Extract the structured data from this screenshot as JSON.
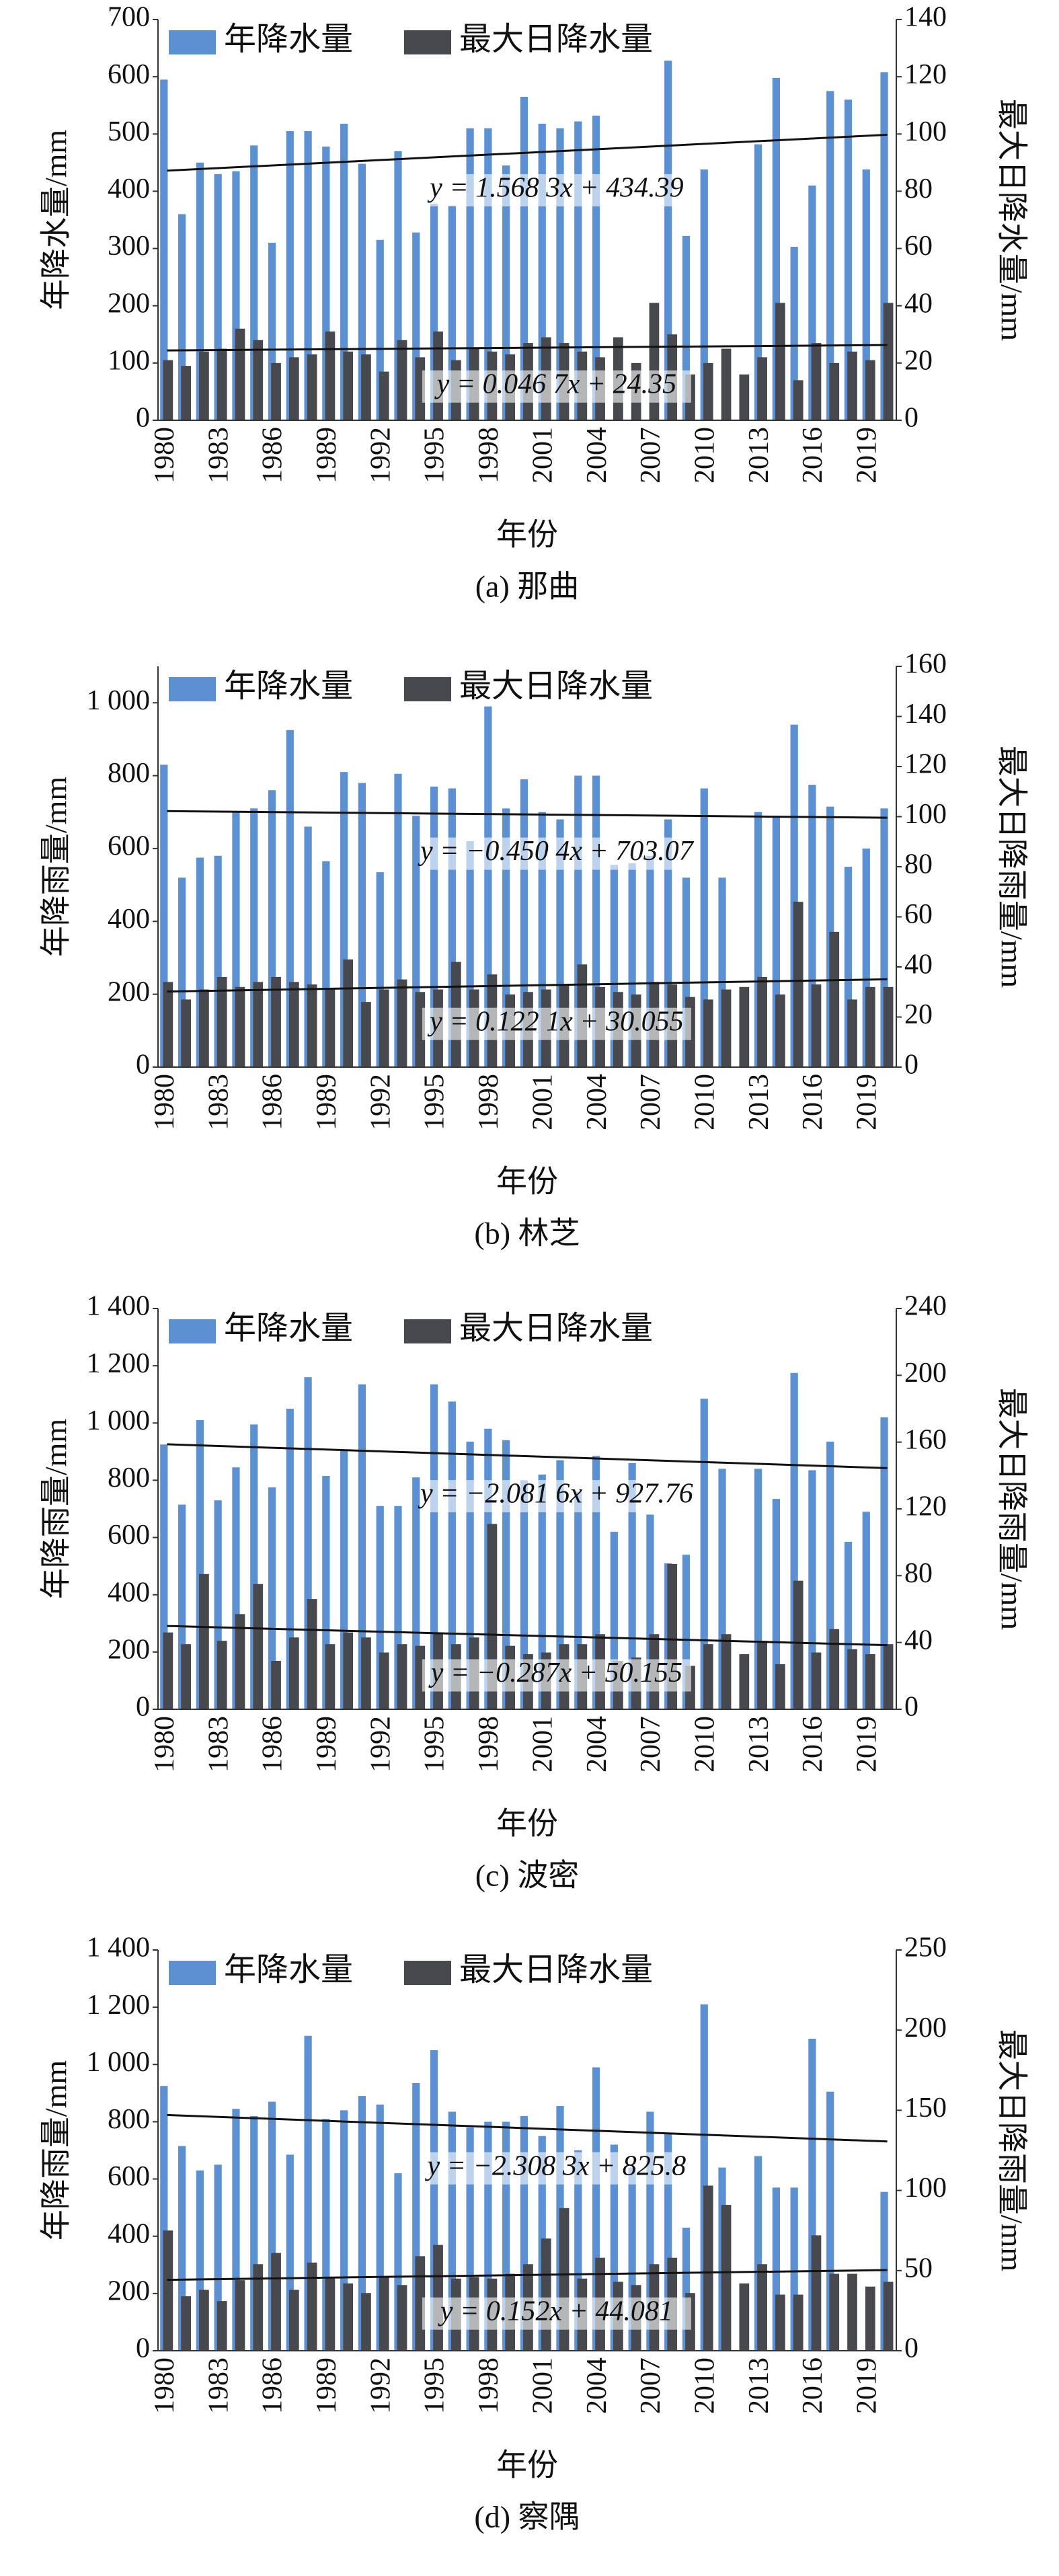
{
  "chart_data": [
    {
      "type": "bar",
      "caption": "(a) 那曲",
      "xlabel": "年份",
      "ylabel": "年降水量/mm",
      "y2label": "最大日降水量/mm",
      "categories": [
        "1980",
        null,
        null,
        "1983",
        null,
        null,
        "1986",
        null,
        null,
        "1989",
        null,
        null,
        "1992",
        null,
        null,
        "1995",
        null,
        null,
        "1998",
        null,
        null,
        "2001",
        null,
        null,
        "2004",
        null,
        null,
        "2007",
        null,
        null,
        "2010",
        null,
        null,
        "2013",
        null,
        null,
        "2016",
        null,
        null,
        "2019",
        null
      ],
      "series": [
        {
          "name": "年降水量",
          "color": "#5b90d2",
          "values": [
            595,
            360,
            450,
            430,
            435,
            480,
            310,
            505,
            505,
            478,
            518,
            448,
            315,
            470,
            328,
            378,
            375,
            510,
            510,
            445,
            565,
            518,
            510,
            522,
            532,
            null,
            null,
            null,
            628,
            322,
            438,
            null,
            null,
            482,
            598,
            303,
            410,
            575,
            560,
            438,
            608
          ]
        },
        {
          "name": "最大日降水量",
          "color": "#48494f",
          "axis": "y2",
          "values": [
            21,
            19,
            24,
            25,
            32,
            28,
            20,
            22,
            23,
            31,
            24,
            23,
            17,
            28,
            22,
            31,
            21,
            25,
            24,
            23,
            27,
            29,
            27,
            24,
            22,
            29,
            20,
            41,
            30,
            16,
            20,
            25,
            16,
            22,
            41,
            14,
            27,
            20,
            24,
            21,
            41
          ]
        }
      ],
      "trendlines": [
        {
          "slope": 1.5683,
          "intercept": 434.39,
          "label": "y = 1.568 3x + 434.39"
        },
        {
          "slope": 0.0467,
          "intercept": 24.35,
          "label": "y = 0.046 7x + 24.35",
          "axis": "y2"
        }
      ],
      "ylim": [
        0,
        700
      ],
      "yticks": [
        0,
        100,
        200,
        300,
        400,
        500,
        600,
        700
      ],
      "y2lim": [
        0,
        140
      ],
      "y2ticks": [
        0,
        20,
        40,
        60,
        80,
        100,
        120,
        140
      ]
    },
    {
      "type": "bar",
      "caption": "(b) 林芝",
      "xlabel": "年份",
      "ylabel": "年降雨量/mm",
      "y2label": "最大日降雨量/mm",
      "categories": [
        "1980",
        null,
        null,
        "1983",
        null,
        null,
        "1986",
        null,
        null,
        "1989",
        null,
        null,
        "1992",
        null,
        null,
        "1995",
        null,
        null,
        "1998",
        null,
        null,
        "2001",
        null,
        null,
        "2004",
        null,
        null,
        "2007",
        null,
        null,
        "2010",
        null,
        null,
        "2013",
        null,
        null,
        "2016",
        null,
        null,
        "2019",
        null
      ],
      "series": [
        {
          "name": "年降水量",
          "color": "#5b90d2",
          "values": [
            830,
            520,
            575,
            580,
            700,
            710,
            760,
            925,
            660,
            565,
            810,
            780,
            535,
            805,
            690,
            770,
            765,
            620,
            990,
            710,
            790,
            700,
            680,
            800,
            800,
            555,
            560,
            580,
            680,
            520,
            765,
            520,
            null,
            700,
            690,
            940,
            775,
            715,
            550,
            600,
            710
          ]
        },
        {
          "name": "最大日降水量",
          "color": "#48494f",
          "axis": "y2",
          "values": [
            34,
            27,
            31,
            36,
            32,
            34,
            36,
            34,
            33,
            31,
            43,
            26,
            31,
            35,
            30,
            31,
            42,
            31,
            37,
            29,
            30,
            31,
            33,
            41,
            32,
            30,
            29,
            34,
            33,
            28,
            27,
            31,
            32,
            36,
            29,
            66,
            33,
            54,
            27,
            32,
            32
          ]
        }
      ],
      "trendlines": [
        {
          "slope": -0.4504,
          "intercept": 703.07,
          "label": "y = −0.450 4x + 703.07"
        },
        {
          "slope": 0.1221,
          "intercept": 30.055,
          "label": "y = 0.122 1x + 30.055",
          "axis": "y2"
        }
      ],
      "ylim": [
        0,
        1100
      ],
      "yticks": [
        0,
        200,
        400,
        600,
        800,
        {
          "value": 1000,
          "label": "1 000"
        }
      ],
      "y2lim": [
        0,
        160
      ],
      "y2ticks": [
        0,
        20,
        40,
        60,
        80,
        100,
        120,
        140,
        160
      ]
    },
    {
      "type": "bar",
      "caption": "(c) 波密",
      "xlabel": "年份",
      "ylabel": "年降雨量/mm",
      "y2label": "最大日降雨量/mm",
      "categories": [
        "1980",
        null,
        null,
        "1983",
        null,
        null,
        "1986",
        null,
        null,
        "1989",
        null,
        null,
        "1992",
        null,
        null,
        "1995",
        null,
        null,
        "1998",
        null,
        null,
        "2001",
        null,
        null,
        "2004",
        null,
        null,
        "2007",
        null,
        null,
        "2010",
        null,
        null,
        "2013",
        null,
        null,
        "2016",
        null,
        null,
        "2019",
        null
      ],
      "series": [
        {
          "name": "年降水量",
          "color": "#5b90d2",
          "values": [
            925,
            715,
            1010,
            730,
            845,
            995,
            775,
            1050,
            1160,
            815,
            905,
            1135,
            710,
            710,
            810,
            1135,
            1075,
            935,
            980,
            940,
            800,
            820,
            870,
            760,
            885,
            620,
            860,
            680,
            510,
            540,
            1085,
            840,
            null,
            840,
            735,
            1175,
            835,
            935,
            585,
            690,
            1020
          ]
        },
        {
          "name": "最大日降水量",
          "color": "#48494f",
          "axis": "y2",
          "values": [
            46,
            39,
            81,
            41,
            57,
            75,
            29,
            43,
            66,
            39,
            46,
            43,
            34,
            39,
            38,
            46,
            39,
            43,
            111,
            38,
            33,
            34,
            39,
            39,
            45,
            29,
            31,
            45,
            87,
            26,
            39,
            45,
            33,
            41,
            27,
            77,
            34,
            48,
            36,
            33,
            39
          ]
        }
      ],
      "trendlines": [
        {
          "slope": -2.0816,
          "intercept": 927.76,
          "label": "y = −2.081 6x + 927.76"
        },
        {
          "slope": -0.287,
          "intercept": 50.155,
          "label": "y = −0.287x + 50.155",
          "axis": "y2"
        }
      ],
      "ylim": [
        0,
        1400
      ],
      "yticks": [
        0,
        200,
        400,
        600,
        800,
        {
          "value": 1000,
          "label": "1 000"
        },
        {
          "value": 1200,
          "label": "1 200"
        },
        {
          "value": 1400,
          "label": "1 400"
        }
      ],
      "y2lim": [
        0,
        240
      ],
      "y2ticks": [
        0,
        40,
        80,
        120,
        160,
        200,
        240
      ]
    },
    {
      "type": "bar",
      "caption": "(d) 察隅",
      "xlabel": "年份",
      "ylabel": "年降雨量/mm",
      "y2label": "最大日降雨量/mm",
      "categories": [
        "1980",
        null,
        null,
        "1983",
        null,
        null,
        "1986",
        null,
        null,
        "1989",
        null,
        null,
        "1992",
        null,
        null,
        "1995",
        null,
        null,
        "1998",
        null,
        null,
        "2001",
        null,
        null,
        "2004",
        null,
        null,
        "2007",
        null,
        null,
        "2010",
        null,
        null,
        "2013",
        null,
        null,
        "2016",
        null,
        null,
        "2019",
        null
      ],
      "series": [
        {
          "name": "年降水量",
          "color": "#5b90d2",
          "values": [
            925,
            715,
            630,
            650,
            845,
            820,
            870,
            685,
            1100,
            810,
            840,
            890,
            860,
            620,
            935,
            1050,
            835,
            780,
            800,
            800,
            820,
            750,
            855,
            700,
            990,
            720,
            640,
            835,
            760,
            430,
            1210,
            640,
            null,
            680,
            570,
            570,
            1090,
            905,
            null,
            null,
            555
          ]
        },
        {
          "name": "最大日降水量",
          "color": "#48494f",
          "axis": "y2",
          "values": [
            75,
            34,
            38,
            31,
            44,
            54,
            61,
            38,
            55,
            46,
            42,
            36,
            46,
            41,
            59,
            66,
            45,
            46,
            45,
            48,
            54,
            70,
            89,
            45,
            58,
            43,
            41,
            54,
            58,
            36,
            103,
            91,
            42,
            54,
            35,
            35,
            72,
            48,
            48,
            40,
            43
          ]
        }
      ],
      "trendlines": [
        {
          "slope": -2.3083,
          "intercept": 825.8,
          "label": "y = −2.308 3x + 825.8"
        },
        {
          "slope": 0.152,
          "intercept": 44.081,
          "label": "y = 0.152x + 44.081",
          "axis": "y2"
        }
      ],
      "ylim": [
        0,
        1400
      ],
      "yticks": [
        0,
        200,
        400,
        600,
        800,
        {
          "value": 1000,
          "label": "1 000"
        },
        {
          "value": 1200,
          "label": "1 200"
        },
        {
          "value": 1400,
          "label": "1 400"
        }
      ],
      "y2lim": [
        0,
        250
      ],
      "y2ticks": [
        0,
        50,
        100,
        150,
        200,
        250
      ]
    }
  ]
}
